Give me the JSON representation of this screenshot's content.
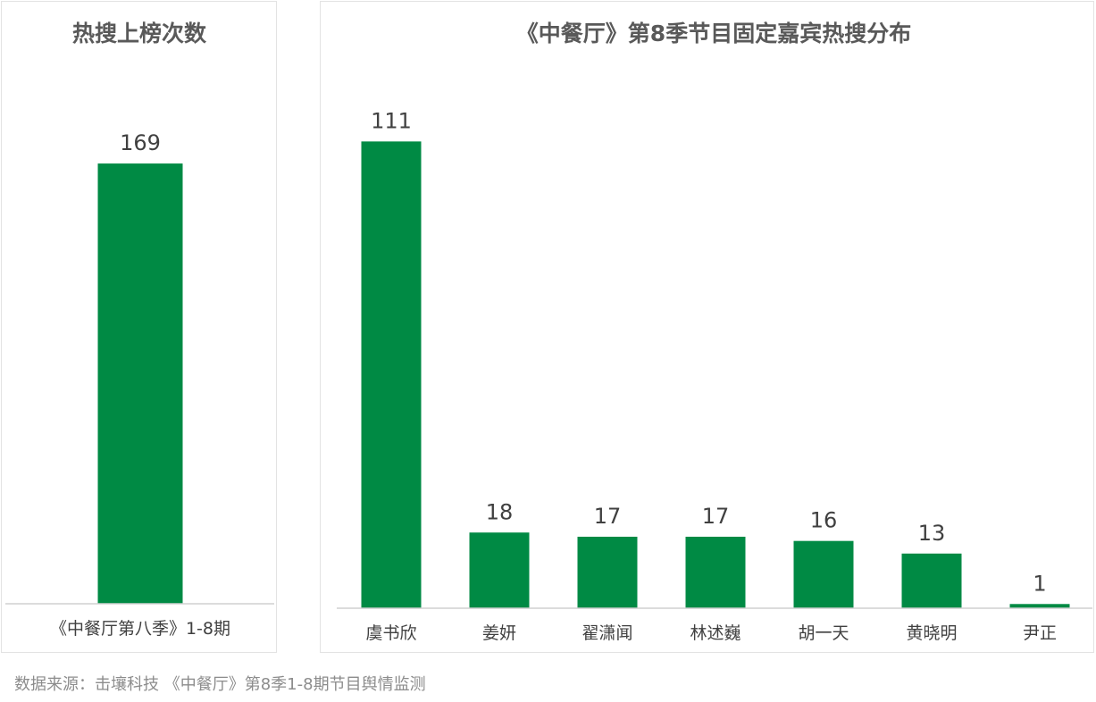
{
  "colors": {
    "bar": "#008a44",
    "axis": "#d0d0d0"
  },
  "chart_data": [
    {
      "type": "bar",
      "title": "热搜上榜次数",
      "categories": [
        "《中餐厅第八季》1-8期"
      ],
      "values": [
        169
      ],
      "ylim": [
        0,
        180
      ],
      "grid": false,
      "legend": "none"
    },
    {
      "type": "bar",
      "title": "《中餐厅》第8季节目固定嘉宾热搜分布",
      "categories": [
        "虞书欣",
        "姜妍",
        "翟潇闻",
        "林述巍",
        "胡一天",
        "黄晓明",
        "尹正"
      ],
      "values": [
        111,
        18,
        17,
        17,
        16,
        13,
        1
      ],
      "ylim": [
        0,
        120
      ],
      "grid": false,
      "legend": "none"
    }
  ],
  "footer": {
    "source": "数据来源：击壤科技 《中餐厅》第8季1-8期节目舆情监测"
  }
}
